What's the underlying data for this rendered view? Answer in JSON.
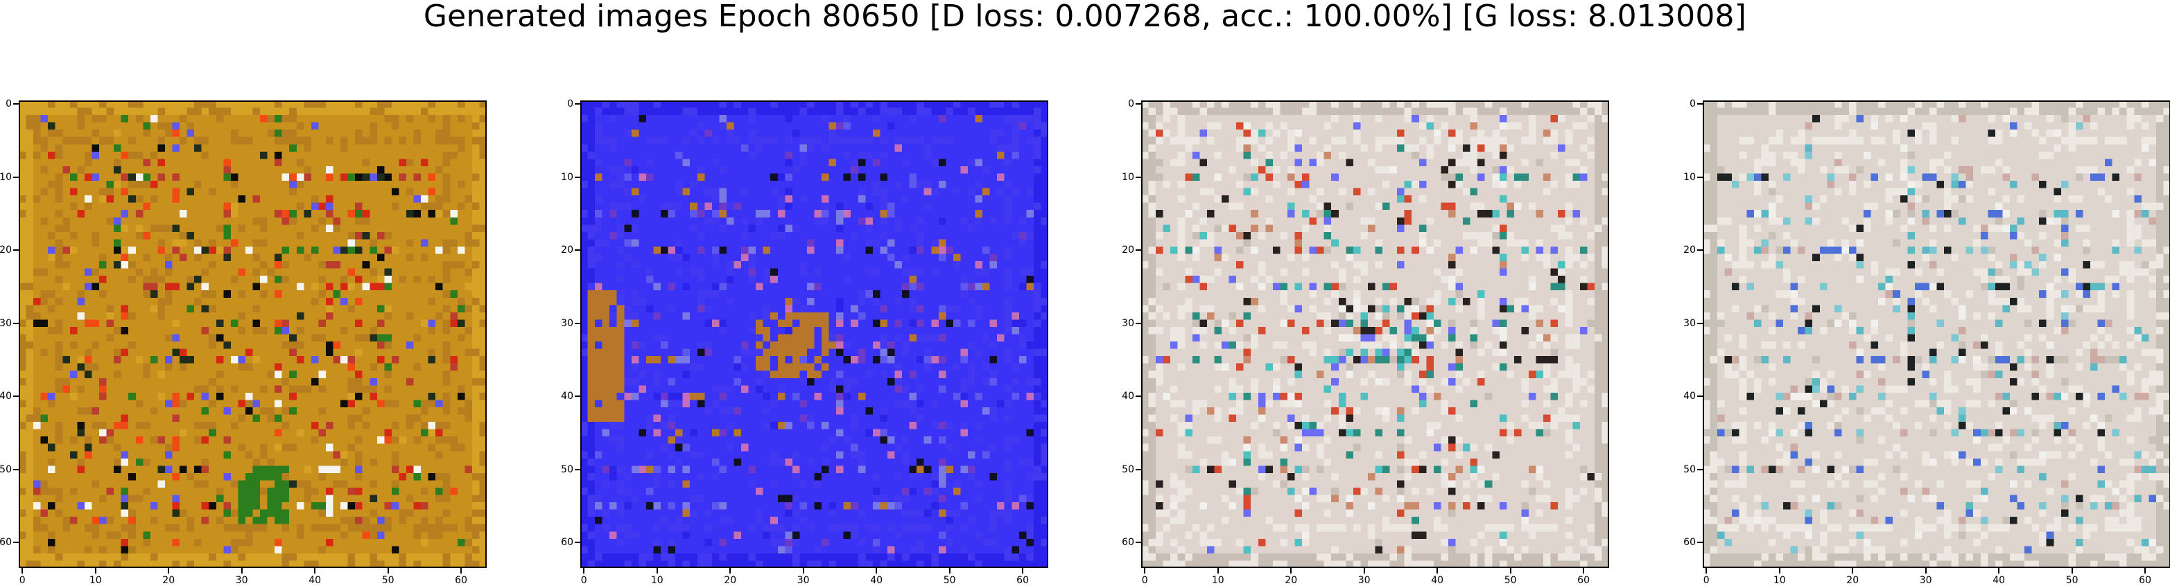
{
  "figure": {
    "title": "Generated images Epoch 80650 [D loss: 0.007268, acc.: 100.00%] [G loss: 8.013008]"
  },
  "axes": {
    "x_ticks": [
      0,
      10,
      20,
      30,
      40,
      50,
      60
    ],
    "y_ticks": [
      0,
      10,
      20,
      30,
      40,
      50,
      60
    ],
    "x_range": [
      -0.5,
      63.5
    ],
    "y_range": [
      -0.5,
      63.5
    ],
    "y_inverted": true,
    "grid": false
  },
  "panels": [
    {
      "base_color": "#c8901c",
      "palette": [
        "#c8901c",
        "#b77e20",
        "#d6a226",
        "#f24a15",
        "#d62913",
        "#2c7d1d",
        "#1f2d1c",
        "#f6f4ef",
        "#5f56ed",
        "#ba3d2d",
        "#0e0d0b"
      ]
    },
    {
      "base_color": "#3a32f5",
      "palette": [
        "#3a32f5",
        "#4338f2",
        "#2b23e9",
        "#5f58ee",
        "#101023",
        "#b8762a",
        "#7b79e5",
        "#6c39c9",
        "#c66fb7"
      ]
    },
    {
      "base_color": "#dfd5ce",
      "palette": [
        "#dfd5ce",
        "#ece7e1",
        "#c8beb6",
        "#4dc0bf",
        "#2c8e80",
        "#27221f",
        "#6a6df4",
        "#d64b2f",
        "#ca8a6b",
        "#f1f0ec"
      ]
    },
    {
      "base_color": "#ddd5ce",
      "palette": [
        "#ddd5ce",
        "#eee8e2",
        "#c8c1b8",
        "#5cb9c4",
        "#1e2222",
        "#4f70d8",
        "#ceaaa5",
        "#7cc8d3",
        "#f1f0ec"
      ]
    }
  ]
}
